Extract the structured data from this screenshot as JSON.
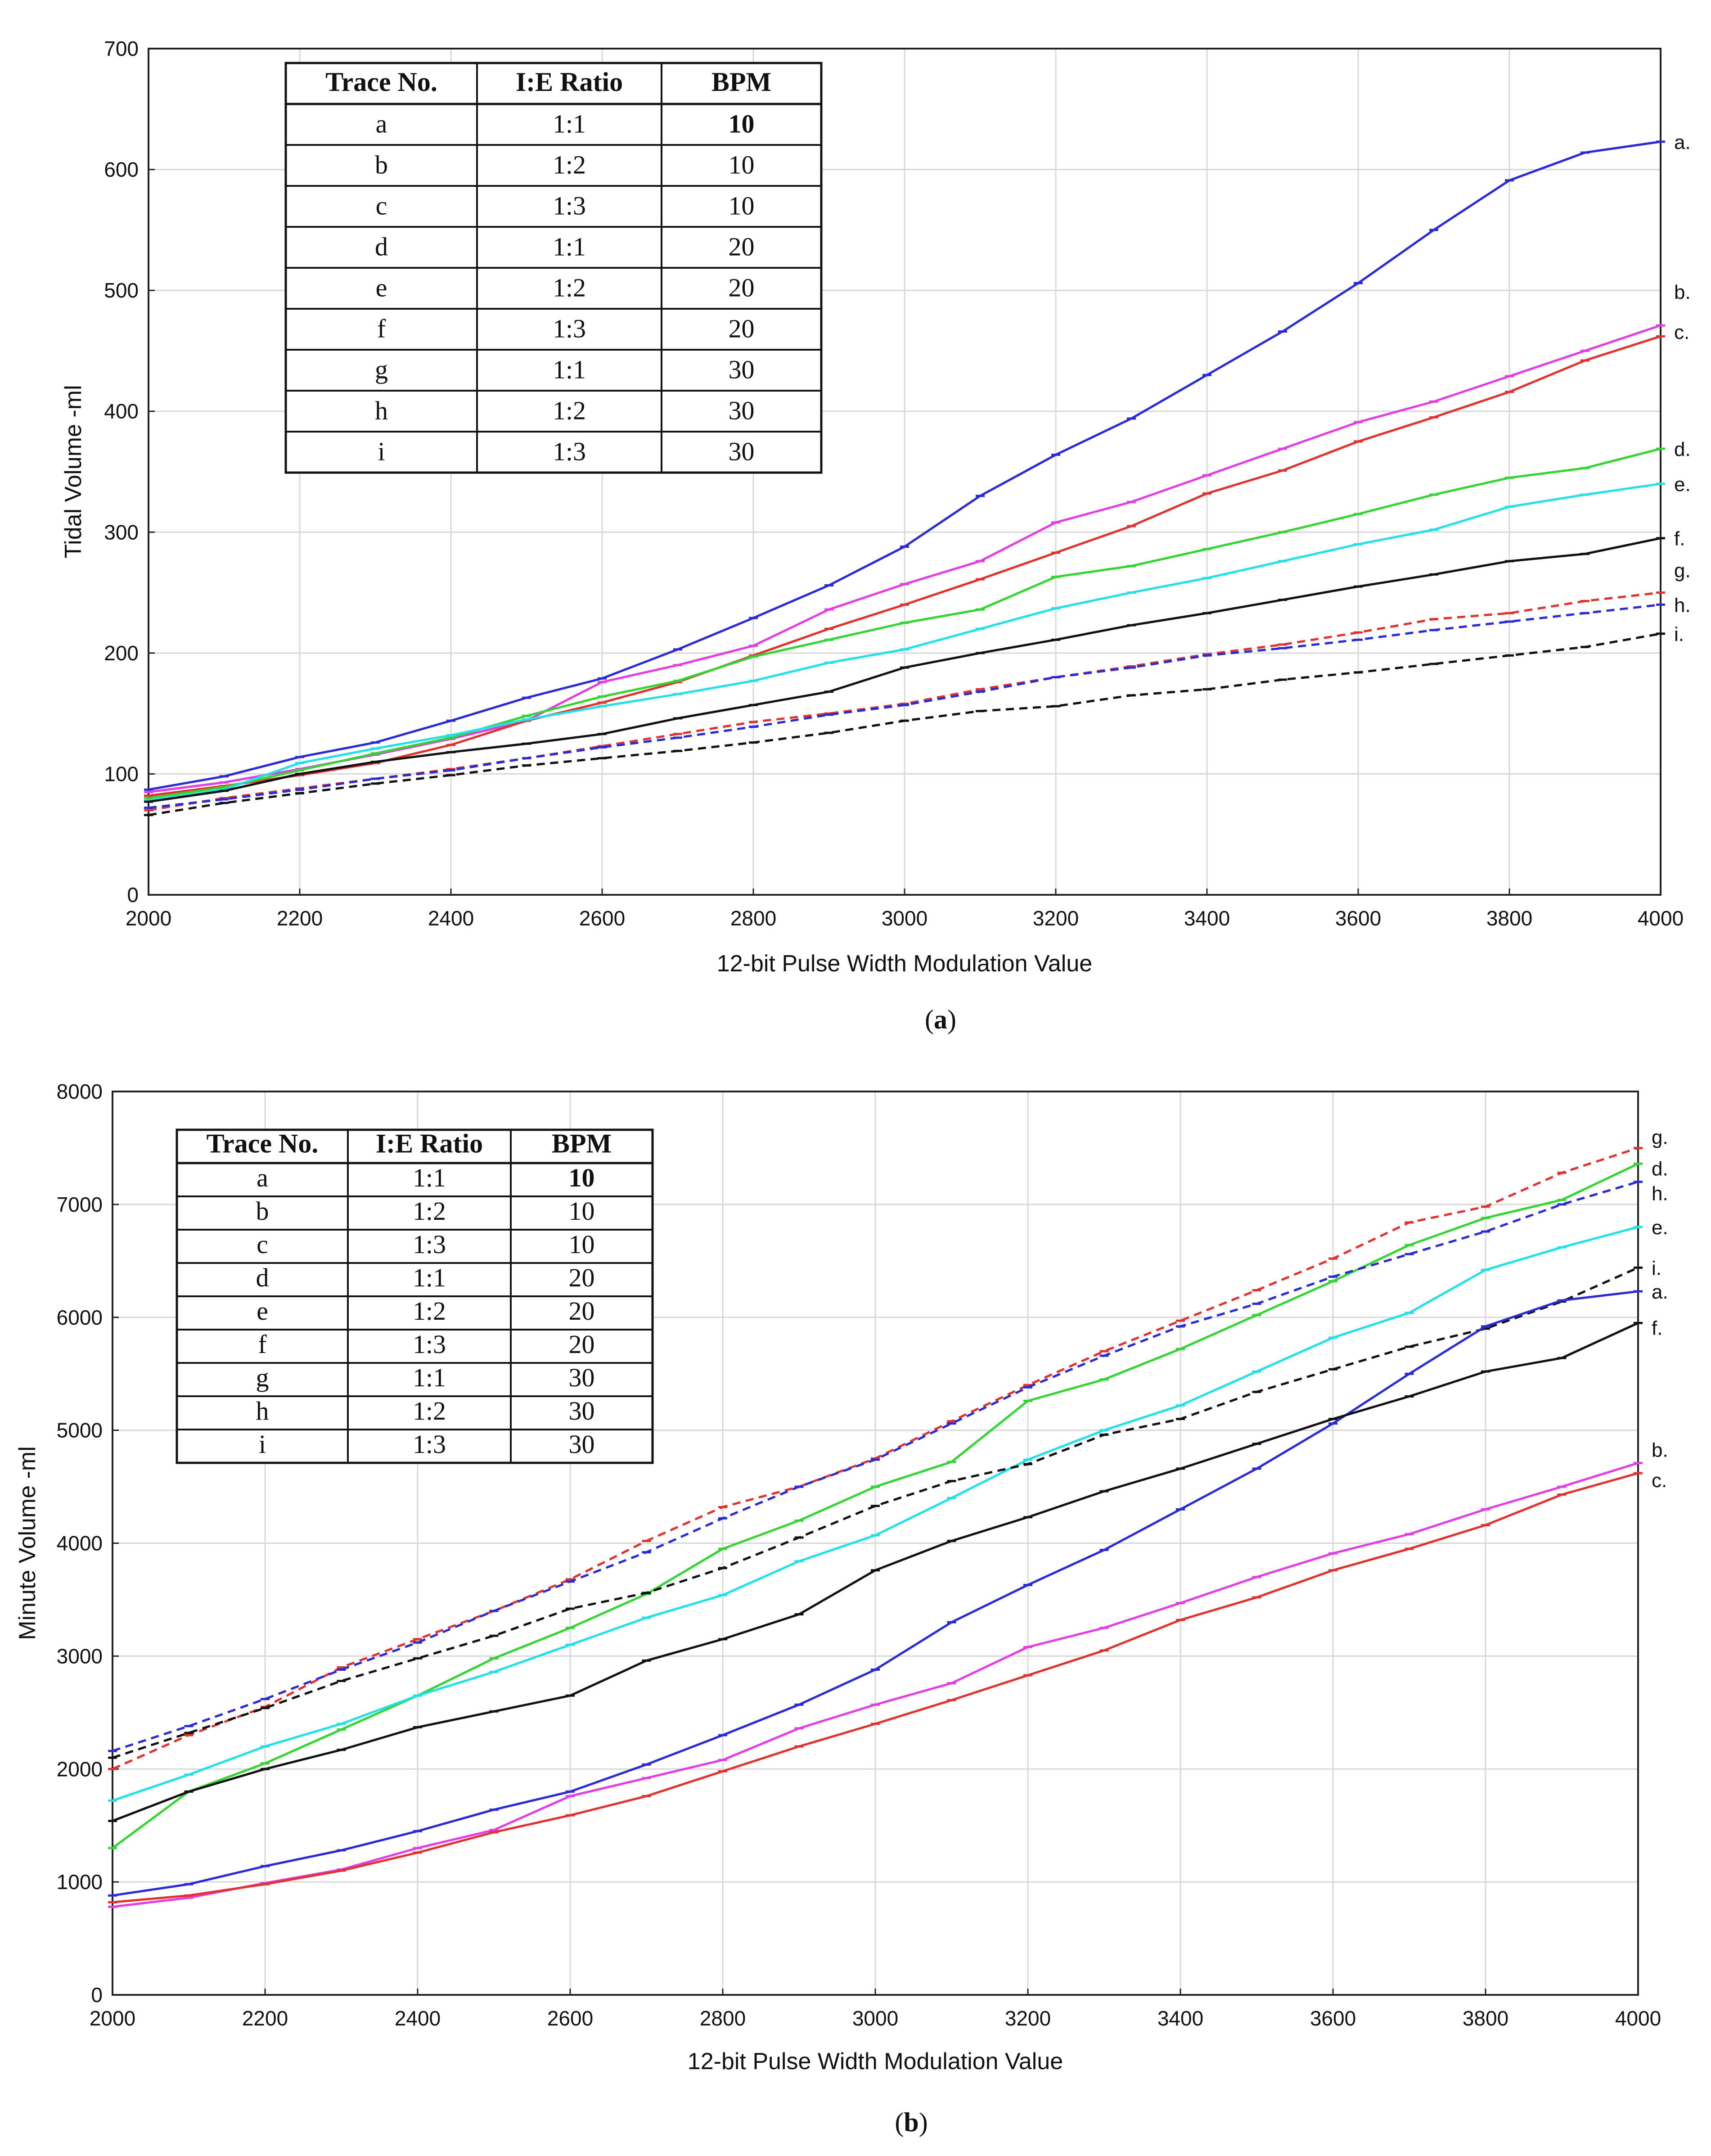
{
  "chart_data": [
    {
      "id": "a",
      "type": "line",
      "caption": "a",
      "xlabel": "12-bit Pulse Width Modulation Value",
      "ylabel": "Tidal Volume -ml",
      "xlim": [
        2000,
        4000
      ],
      "ylim": [
        0,
        700
      ],
      "xticks": [
        2000,
        2200,
        2400,
        2600,
        2800,
        3000,
        3200,
        3400,
        3600,
        3800,
        4000
      ],
      "yticks": [
        0,
        100,
        200,
        300,
        400,
        500,
        600,
        700
      ],
      "grid": true,
      "x": [
        2000,
        2100,
        2200,
        2300,
        2400,
        2500,
        2600,
        2700,
        2800,
        2900,
        3000,
        3100,
        3200,
        3300,
        3400,
        3500,
        3600,
        3700,
        3800,
        3900,
        4000
      ],
      "legend_table": {
        "headers": [
          "Trace No.",
          "I:E Ratio",
          "BPM"
        ],
        "rows": [
          [
            "a",
            "1:1",
            "10"
          ],
          [
            "b",
            "1:2",
            "10"
          ],
          [
            "c",
            "1:3",
            "10"
          ],
          [
            "d",
            "1:1",
            "20"
          ],
          [
            "e",
            "1:2",
            "20"
          ],
          [
            "f",
            "1:3",
            "20"
          ],
          [
            "g",
            "1:1",
            "30"
          ],
          [
            "h",
            "1:2",
            "30"
          ],
          [
            "i",
            "1:3",
            "30"
          ]
        ]
      },
      "series": [
        {
          "name": "a",
          "label": "a.",
          "color": "#2b2bd6",
          "dashed": false,
          "values": [
            87,
            98,
            114,
            126,
            144,
            163,
            179,
            203,
            229,
            256,
            288,
            330,
            364,
            394,
            430,
            466,
            506,
            550,
            591,
            614,
            623
          ]
        },
        {
          "name": "b",
          "label": "b.",
          "color": "#e23ee3",
          "dashed": false,
          "values": [
            85,
            93,
            104,
            116,
            129,
            144,
            176,
            190,
            206,
            236,
            257,
            276,
            308,
            325,
            347,
            369,
            391,
            408,
            429,
            450,
            471
          ]
        },
        {
          "name": "c",
          "label": "c.",
          "color": "#e0332f",
          "dashed": false,
          "values": [
            82,
            90,
            99,
            109,
            124,
            144,
            159,
            176,
            198,
            220,
            240,
            261,
            283,
            305,
            332,
            351,
            375,
            395,
            416,
            442,
            462
          ]
        },
        {
          "name": "d",
          "label": "d.",
          "color": "#33d433",
          "dashed": false,
          "values": [
            80,
            89,
            103,
            117,
            130,
            148,
            164,
            177,
            197,
            211,
            225,
            236,
            263,
            272,
            286,
            300,
            315,
            331,
            345,
            353,
            369
          ]
        },
        {
          "name": "e",
          "label": "e.",
          "color": "#22e0e8",
          "dashed": false,
          "values": [
            78,
            87,
            109,
            121,
            132,
            145,
            156,
            166,
            177,
            192,
            203,
            220,
            237,
            250,
            262,
            276,
            290,
            302,
            321,
            331,
            340
          ]
        },
        {
          "name": "f",
          "label": "f.",
          "color": "#111111",
          "dashed": false,
          "values": [
            77,
            86,
            100,
            110,
            118,
            125,
            133,
            146,
            157,
            168,
            188,
            200,
            211,
            223,
            233,
            244,
            255,
            265,
            276,
            282,
            295
          ]
        },
        {
          "name": "g",
          "label": "g.",
          "color": "#e0332f",
          "dashed": true,
          "values": [
            70,
            80,
            88,
            96,
            104,
            113,
            123,
            133,
            143,
            150,
            158,
            170,
            180,
            189,
            199,
            207,
            217,
            228,
            233,
            243,
            250
          ]
        },
        {
          "name": "h",
          "label": "h.",
          "color": "#2b2bd6",
          "dashed": true,
          "values": [
            72,
            79,
            87,
            96,
            103,
            113,
            122,
            130,
            139,
            149,
            157,
            168,
            180,
            188,
            198,
            204,
            211,
            219,
            226,
            233,
            240
          ]
        },
        {
          "name": "i",
          "label": "i.",
          "color": "#111111",
          "dashed": true,
          "values": [
            66,
            76,
            84,
            92,
            99,
            107,
            113,
            119,
            126,
            134,
            144,
            152,
            156,
            165,
            170,
            178,
            184,
            191,
            198,
            205,
            216
          ]
        }
      ]
    },
    {
      "id": "b",
      "type": "line",
      "caption": "b",
      "xlabel": "12-bit Pulse Width Modulation Value",
      "ylabel": "Minute Volume -ml",
      "xlim": [
        2000,
        4000
      ],
      "ylim": [
        0,
        8000
      ],
      "xticks": [
        2000,
        2200,
        2400,
        2600,
        2800,
        3000,
        3200,
        3400,
        3600,
        3800,
        4000
      ],
      "yticks": [
        0,
        1000,
        2000,
        3000,
        4000,
        5000,
        6000,
        7000,
        8000
      ],
      "grid": true,
      "x": [
        2000,
        2100,
        2200,
        2300,
        2400,
        2500,
        2600,
        2700,
        2800,
        2900,
        3000,
        3100,
        3200,
        3300,
        3400,
        3500,
        3600,
        3700,
        3800,
        3900,
        4000
      ],
      "legend_table": {
        "headers": [
          "Trace No.",
          "I:E Ratio",
          "BPM"
        ],
        "rows": [
          [
            "a",
            "1:1",
            "10"
          ],
          [
            "b",
            "1:2",
            "10"
          ],
          [
            "c",
            "1:3",
            "10"
          ],
          [
            "d",
            "1:1",
            "20"
          ],
          [
            "e",
            "1:2",
            "20"
          ],
          [
            "f",
            "1:3",
            "20"
          ],
          [
            "g",
            "1:1",
            "30"
          ],
          [
            "h",
            "1:2",
            "30"
          ],
          [
            "i",
            "1:3",
            "30"
          ]
        ]
      },
      "series": [
        {
          "name": "g",
          "label": "g.",
          "color": "#e0332f",
          "dashed": true,
          "values": [
            2000,
            2300,
            2550,
            2900,
            3150,
            3400,
            3680,
            4020,
            4320,
            4500,
            4750,
            5080,
            5400,
            5700,
            5970,
            6240,
            6520,
            6840,
            6980,
            7280,
            7500
          ]
        },
        {
          "name": "d",
          "label": "d.",
          "color": "#33d433",
          "dashed": false,
          "values": [
            1300,
            1800,
            2050,
            2350,
            2650,
            2980,
            3250,
            3550,
            3950,
            4200,
            4500,
            4720,
            5260,
            5450,
            5720,
            6020,
            6320,
            6640,
            6880,
            7040,
            7360
          ]
        },
        {
          "name": "h",
          "label": "h.",
          "color": "#2b2bd6",
          "dashed": true,
          "values": [
            2160,
            2380,
            2620,
            2880,
            3120,
            3400,
            3660,
            3920,
            4220,
            4500,
            4740,
            5060,
            5380,
            5660,
            5920,
            6120,
            6360,
            6560,
            6760,
            7000,
            7200
          ]
        },
        {
          "name": "e",
          "label": "e.",
          "color": "#22e0e8",
          "dashed": false,
          "values": [
            1720,
            1950,
            2200,
            2400,
            2650,
            2860,
            3100,
            3340,
            3540,
            3840,
            4070,
            4400,
            4740,
            5000,
            5220,
            5520,
            5820,
            6040,
            6420,
            6620,
            6800
          ]
        },
        {
          "name": "i",
          "label": "i.",
          "color": "#111111",
          "dashed": true,
          "values": [
            2100,
            2320,
            2540,
            2780,
            2980,
            3180,
            3420,
            3560,
            3780,
            4050,
            4330,
            4550,
            4700,
            4960,
            5100,
            5340,
            5540,
            5740,
            5900,
            6140,
            6440
          ]
        },
        {
          "name": "a",
          "label": "a.",
          "color": "#2b2bd6",
          "dashed": false,
          "values": [
            880,
            980,
            1140,
            1280,
            1450,
            1640,
            1800,
            2040,
            2300,
            2570,
            2880,
            3300,
            3630,
            3940,
            4300,
            4660,
            5060,
            5500,
            5920,
            6150,
            6230
          ]
        },
        {
          "name": "f",
          "label": "f.",
          "color": "#111111",
          "dashed": false,
          "values": [
            1540,
            1800,
            2000,
            2170,
            2370,
            2510,
            2650,
            2960,
            3150,
            3370,
            3760,
            4020,
            4230,
            4460,
            4660,
            4880,
            5100,
            5300,
            5520,
            5640,
            5950
          ]
        },
        {
          "name": "b",
          "label": "b.",
          "color": "#e23ee3",
          "dashed": false,
          "values": [
            780,
            860,
            990,
            1110,
            1300,
            1460,
            1760,
            1920,
            2080,
            2360,
            2570,
            2760,
            3080,
            3250,
            3470,
            3700,
            3910,
            4080,
            4300,
            4500,
            4710
          ]
        },
        {
          "name": "c",
          "label": "c.",
          "color": "#e0332f",
          "dashed": false,
          "values": [
            820,
            880,
            980,
            1100,
            1260,
            1440,
            1590,
            1760,
            1980,
            2200,
            2400,
            2610,
            2830,
            3050,
            3320,
            3520,
            3760,
            3950,
            4160,
            4430,
            4620
          ]
        }
      ]
    }
  ]
}
